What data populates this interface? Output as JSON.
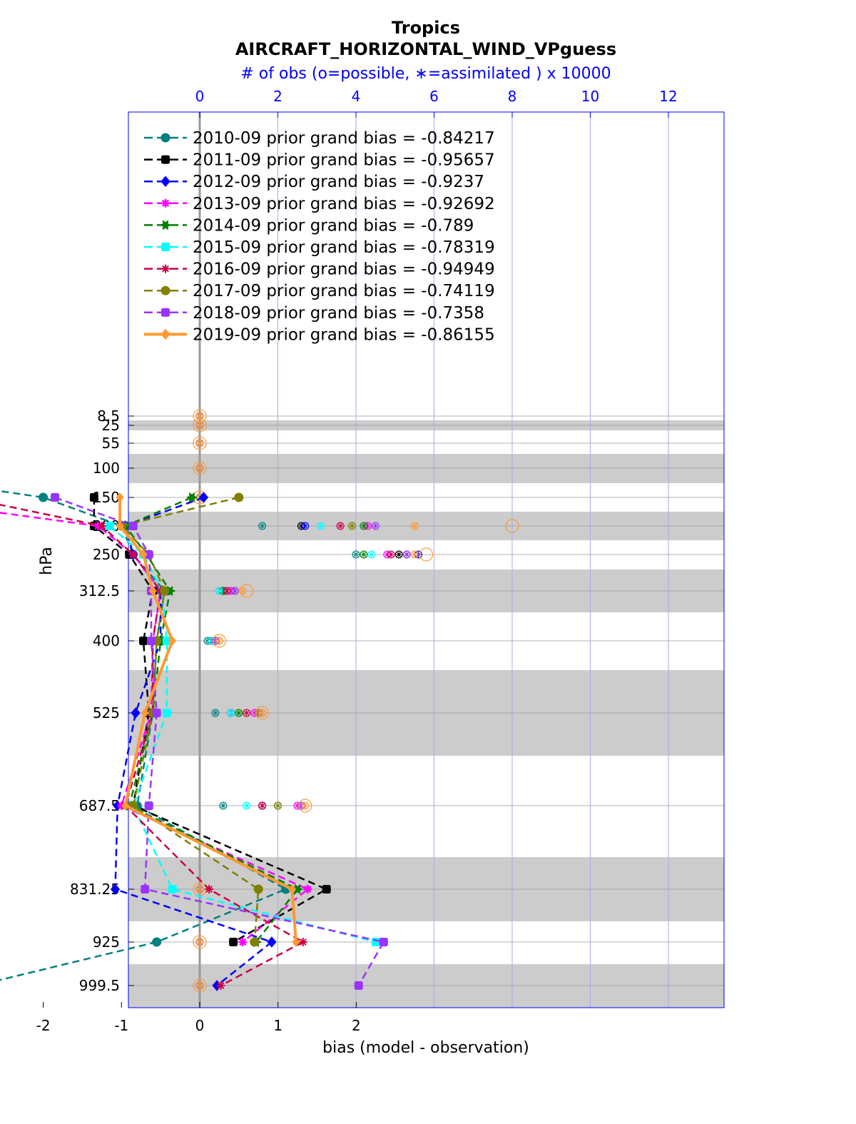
{
  "chart_data": {
    "type": "line",
    "title": "Tropics",
    "subtitle": "AIRCRAFT_HORIZONTAL_WIND_VPguess",
    "top_axis_label": "# of obs (o=possible, ∗=assimilated ) x 10000",
    "xlabel": "bias (model - observation)",
    "ylabel": "hPa",
    "xlim": [
      -4.9,
      2.7
    ],
    "x_ticks": [
      "-4",
      "-3",
      "-2",
      "-1",
      "0",
      "1",
      "2"
    ],
    "top_ticks": [
      "0",
      "2",
      "4",
      "6",
      "8",
      "10",
      "12"
    ],
    "top_xlim": [
      -0.4,
      12.8
    ],
    "levels": [
      "8.5",
      "25",
      "55",
      "100",
      "150",
      "200",
      "250",
      "312.5",
      "400",
      "525",
      "687.5",
      "831.25",
      "925",
      "999.5"
    ],
    "grid": true,
    "legend_position": "top-left",
    "series": [
      {
        "name": "2010-09",
        "label": "2010-09 prior grand bias = -0.84217",
        "color": "#008080",
        "marker": "circle",
        "x": [
          null,
          null,
          null,
          -4.55,
          -2.0,
          -1.0,
          -0.85,
          -0.45,
          -0.55,
          -0.6,
          -0.8,
          1.1,
          -0.55,
          -2.85
        ]
      },
      {
        "name": "2011-09",
        "label": "2011-09 prior grand bias = -0.95657",
        "color": "#000000",
        "marker": "square",
        "x": [
          null,
          null,
          null,
          null,
          -1.35,
          -1.35,
          -0.9,
          -0.6,
          -0.72,
          -0.65,
          -0.85,
          1.62,
          0.43,
          null
        ]
      },
      {
        "name": "2012-09",
        "label": "2012-09 prior grand bias = -0.9237",
        "color": "#0000ff",
        "marker": "diamond",
        "x": [
          null,
          null,
          null,
          null,
          0.05,
          -0.95,
          -0.85,
          -0.5,
          -0.5,
          -0.82,
          -1.05,
          -1.08,
          0.92,
          0.22
        ]
      },
      {
        "name": "2013-09",
        "label": "2013-09 prior grand bias = -0.92692",
        "color": "#ff00ff",
        "marker": "star",
        "x": [
          null,
          null,
          null,
          null,
          -4.0,
          -1.3,
          -0.85,
          -0.5,
          -0.6,
          -0.62,
          -1.0,
          1.38,
          0.55,
          null
        ]
      },
      {
        "name": "2014-09",
        "label": "2014-09 prior grand bias = -0.789",
        "color": "#008000",
        "marker": "hexagram",
        "x": [
          null,
          null,
          null,
          null,
          -0.1,
          -0.95,
          -0.68,
          -0.38,
          -0.5,
          -0.6,
          -0.9,
          1.25,
          0.72,
          null
        ]
      },
      {
        "name": "2015-09",
        "label": "2015-09 prior grand bias = -0.78319",
        "color": "#00ffff",
        "marker": "square",
        "x": [
          null,
          null,
          null,
          null,
          null,
          -1.15,
          -0.72,
          -0.48,
          -0.42,
          -0.42,
          -0.85,
          -0.35,
          2.25,
          null
        ]
      },
      {
        "name": "2016-09",
        "label": "2016-09 prior grand bias = -0.94949",
        "color": "#cc0044",
        "marker": "asterisk",
        "x": [
          null,
          null,
          null,
          null,
          -3.0,
          -1.25,
          -0.85,
          -0.5,
          -0.6,
          -0.6,
          -0.95,
          0.12,
          1.32,
          0.27
        ]
      },
      {
        "name": "2017-09",
        "label": "2017-09 prior grand bias = -0.74119",
        "color": "#808000",
        "marker": "circle",
        "x": [
          null,
          null,
          null,
          null,
          0.5,
          -1.0,
          -0.65,
          -0.45,
          -0.55,
          -0.6,
          -0.85,
          0.75,
          0.7,
          null
        ]
      },
      {
        "name": "2018-09",
        "label": "2018-09 prior grand bias = -0.7358",
        "color": "#9933ff",
        "marker": "square",
        "x": [
          null,
          null,
          null,
          null,
          -1.85,
          -0.85,
          -0.65,
          -0.62,
          -0.62,
          -0.55,
          -0.65,
          -0.7,
          2.35,
          2.03
        ]
      },
      {
        "name": "2019-09",
        "label": "2019-09 prior grand bias = -0.86155",
        "color": "#ff9933",
        "marker": "diamond",
        "x": [
          null,
          null,
          null,
          null,
          -1.02,
          -1.02,
          -0.72,
          -0.6,
          -0.35,
          -0.7,
          -0.95,
          1.18,
          1.23,
          null
        ]
      }
    ],
    "obs_possible_x10000": [
      0,
      0,
      0,
      0,
      0,
      8.0,
      5.8,
      1.2,
      0.5,
      1.6,
      2.7,
      0,
      0,
      0
    ],
    "obs_assimilated_x10000": {
      "2010-09": [
        0,
        0,
        0,
        0,
        0,
        1.6,
        4.0,
        0.5,
        0.2,
        0.4,
        0.6,
        0,
        0,
        0
      ],
      "2011-09": [
        0,
        0,
        0,
        0,
        0,
        2.6,
        5.1,
        0.6,
        0.3,
        0.8,
        1.6,
        0,
        0,
        0
      ],
      "2012-09": [
        0,
        0,
        0,
        0,
        0,
        2.7,
        5.6,
        0.6,
        0.3,
        0.8,
        1.6,
        0,
        0,
        0
      ],
      "2013-09": [
        0,
        0,
        0,
        0,
        0,
        4.3,
        4.8,
        0.8,
        0.4,
        1.4,
        2.5,
        0,
        0,
        0
      ],
      "2014-09": [
        0,
        0,
        0,
        0,
        0,
        4.2,
        4.2,
        0.6,
        0.3,
        1.0,
        2.0,
        0,
        0,
        0
      ],
      "2015-09": [
        0,
        0,
        0,
        0,
        0,
        3.1,
        4.4,
        0.5,
        0.3,
        0.8,
        1.2,
        0,
        0,
        0
      ],
      "2016-09": [
        0,
        0,
        0,
        0,
        0,
        3.6,
        4.9,
        0.7,
        0.4,
        1.2,
        1.6,
        0,
        0,
        0
      ],
      "2017-09": [
        0,
        0,
        0,
        0,
        0,
        3.9,
        5.3,
        0.9,
        0.5,
        1.5,
        2.0,
        0,
        0,
        0
      ],
      "2018-09": [
        0,
        0,
        0,
        0,
        0,
        4.5,
        5.3,
        0.9,
        0.4,
        1.6,
        2.6,
        0,
        0,
        0
      ],
      "2019-09": [
        0,
        0,
        0,
        0,
        0,
        5.5,
        5.5,
        1.1,
        0.5,
        1.6,
        2.7,
        0,
        0,
        0
      ]
    }
  }
}
